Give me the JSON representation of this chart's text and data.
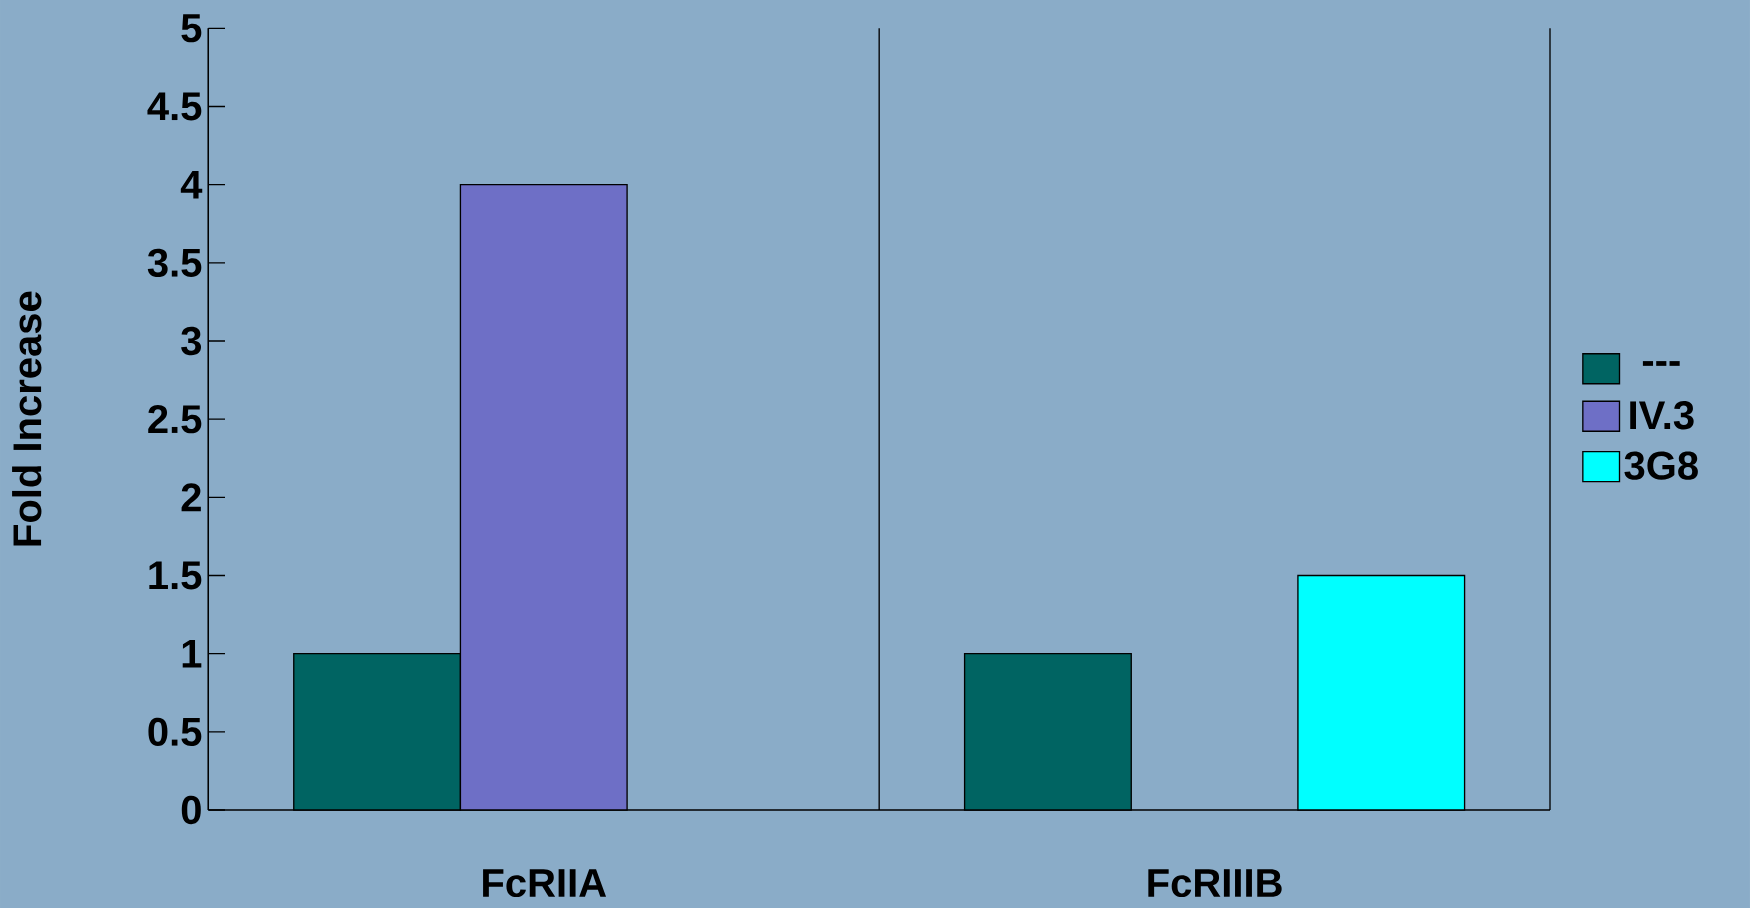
{
  "chart_data": {
    "type": "bar",
    "ylabel": "Fold Increase",
    "categories": [
      "FcRIIA",
      "FcRIIIB"
    ],
    "series": [
      {
        "name": "---",
        "color": "#006462",
        "values": [
          1,
          1
        ]
      },
      {
        "name": "IV.3",
        "color": "#6e6fc6",
        "values": [
          4,
          null
        ]
      },
      {
        "name": "3G8",
        "color": "#00ffff",
        "values": [
          null,
          1.5
        ]
      }
    ],
    "ylim": [
      0,
      5
    ],
    "yticks": [
      0,
      0.5,
      1,
      1.5,
      2,
      2.5,
      3,
      3.5,
      4,
      4.5,
      5
    ],
    "grid": "x",
    "legend": "right"
  }
}
